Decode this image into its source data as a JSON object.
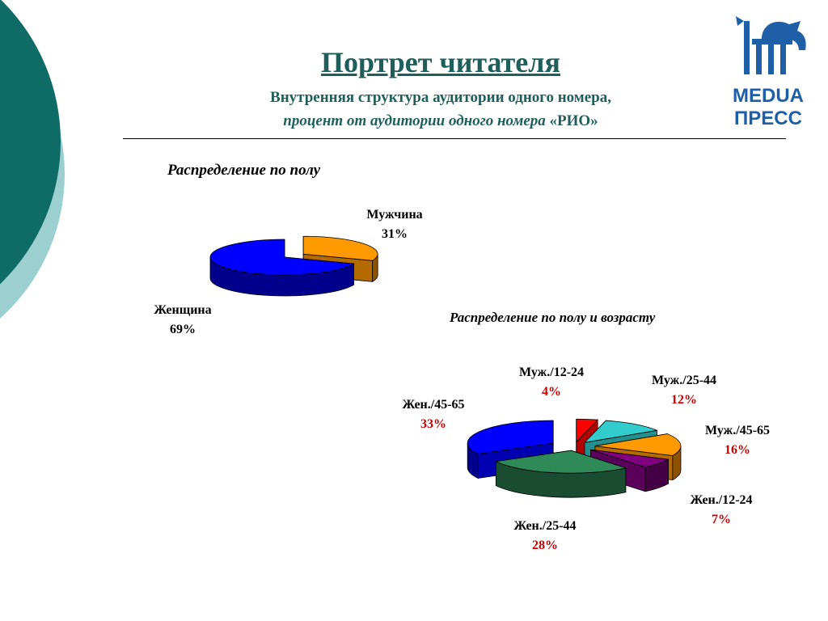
{
  "header": {
    "title": "Портрет читателя",
    "subtitle_line1": "Внутренняя структура аудитории одного номера,",
    "subtitle_line2_italic": "процент от аудитории одного номера",
    "subtitle_line2_plain": " «РИО»"
  },
  "logo": {
    "line1": "MEDUA",
    "line2": "ПРЕСС"
  },
  "colors": {
    "accent": "#1f5f5a",
    "logo": "#1e5fa8",
    "deco_dark": "#0f6b66",
    "deco_light": "#9ccfcf"
  },
  "chart_data": [
    {
      "type": "pie",
      "title": "Распределение по полу",
      "labels": [
        "Мужчина",
        "Женщина"
      ],
      "values": [
        31,
        69
      ],
      "value_labels": [
        "31%",
        "69%"
      ],
      "colors": [
        "#ff9900",
        "#0000ff"
      ],
      "three_d": true
    },
    {
      "type": "pie",
      "title": "Распределение по полу и возрасту",
      "labels": [
        "Муж./12-24",
        "Муж./25-44",
        "Муж./45-65",
        "Жен./12-24",
        "Жен./25-44",
        "Жен./45-65"
      ],
      "values": [
        4,
        12,
        16,
        7,
        28,
        33
      ],
      "value_labels": [
        "4%",
        "12%",
        "16%",
        "7%",
        "28%",
        "33%"
      ],
      "colors": [
        "#ff0000",
        "#33cccc",
        "#ff9900",
        "#800080",
        "#2e8b57",
        "#0000ff"
      ],
      "three_d": true
    }
  ]
}
